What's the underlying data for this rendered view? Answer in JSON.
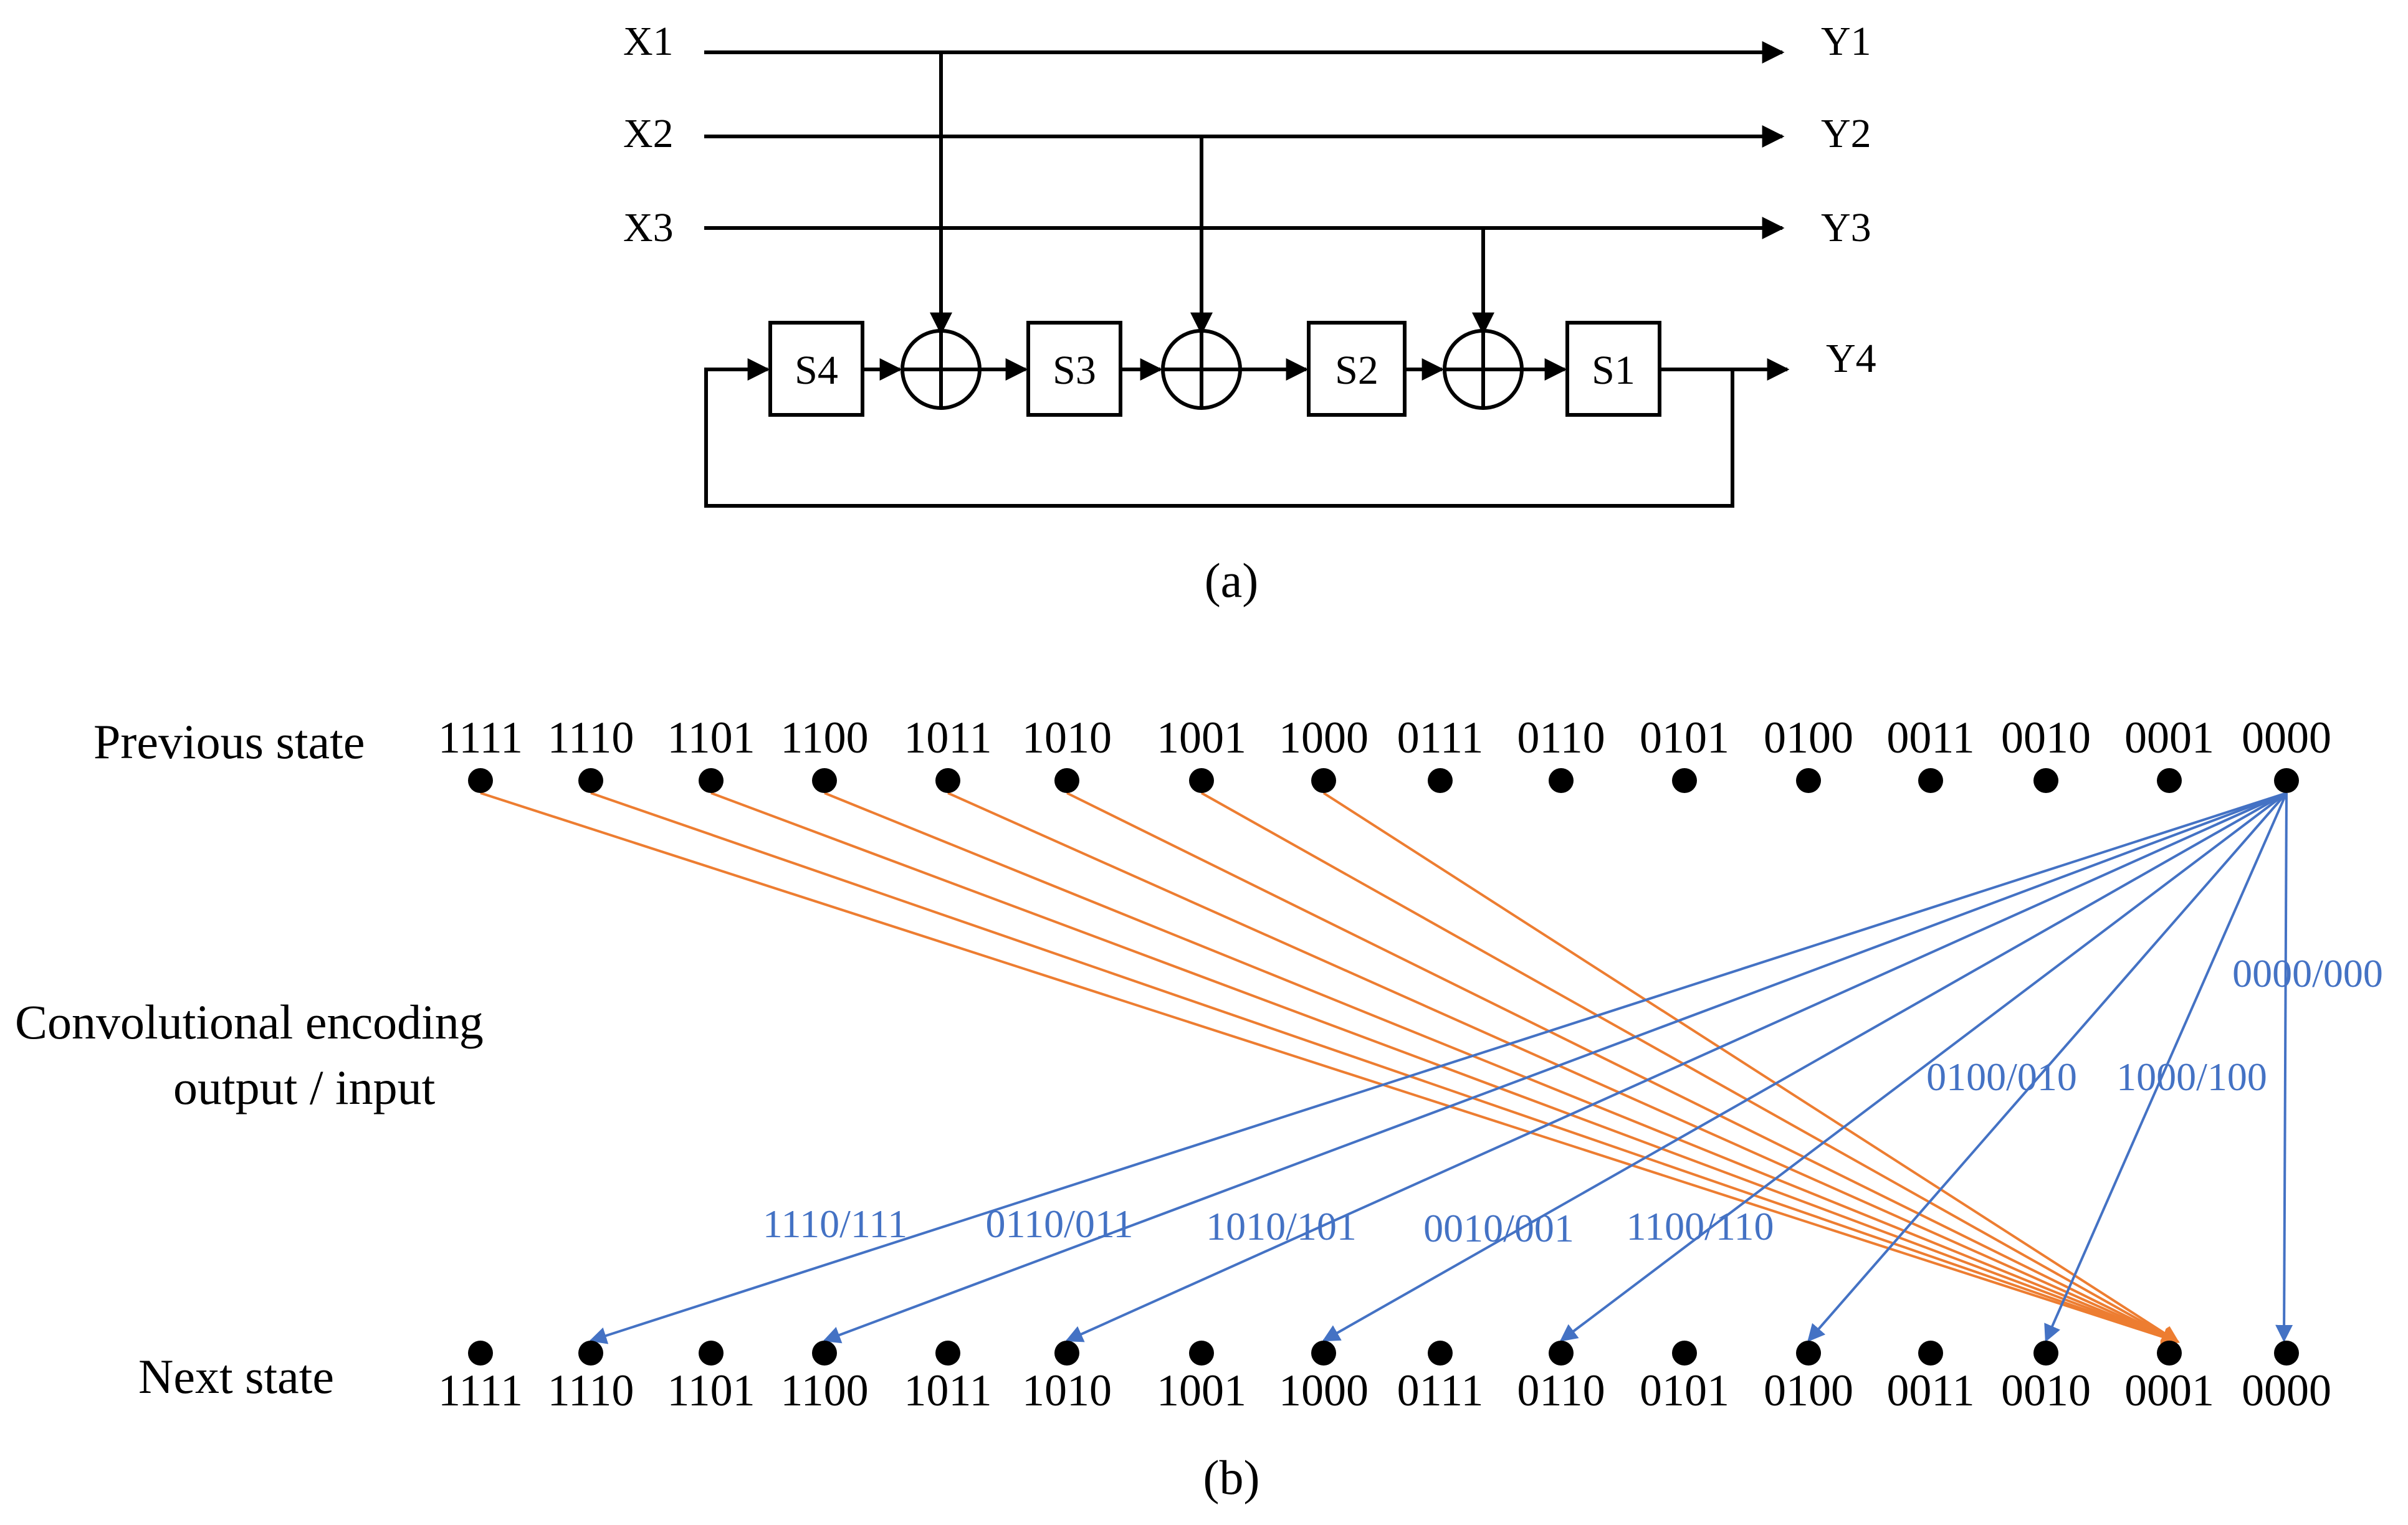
{
  "panel_a": {
    "caption": "(a)",
    "inputs": [
      "X1",
      "X2",
      "X3"
    ],
    "outputs": [
      "Y1",
      "Y2",
      "Y3"
    ],
    "feedback_output": "Y4",
    "registers": [
      "S4",
      "S3",
      "S2",
      "S1"
    ]
  },
  "panel_b": {
    "caption": "(b)",
    "row_labels": {
      "previous": "Previous state",
      "middle_line1": "Convolutional encoding",
      "middle_line2": "output / input",
      "next": "Next state"
    },
    "states": [
      "1111",
      "1110",
      "1101",
      "1100",
      "1011",
      "1010",
      "1001",
      "1000",
      "0111",
      "0110",
      "0101",
      "0100",
      "0011",
      "0010",
      "0001",
      "0000"
    ],
    "orange_transitions": [
      {
        "from": "1111",
        "to": "0001"
      },
      {
        "from": "1110",
        "to": "0001"
      },
      {
        "from": "1101",
        "to": "0001"
      },
      {
        "from": "1100",
        "to": "0001"
      },
      {
        "from": "1011",
        "to": "0001"
      },
      {
        "from": "1010",
        "to": "0001"
      },
      {
        "from": "1001",
        "to": "0001"
      },
      {
        "from": "1000",
        "to": "0001"
      }
    ],
    "blue_transitions": [
      {
        "from": "0000",
        "to": "1110",
        "label": "1110/111"
      },
      {
        "from": "0000",
        "to": "1100",
        "label": "0110/011"
      },
      {
        "from": "0000",
        "to": "1010",
        "label": "1010/101"
      },
      {
        "from": "0000",
        "to": "1000",
        "label": "0010/001"
      },
      {
        "from": "0000",
        "to": "0110",
        "label": "1100/110"
      },
      {
        "from": "0000",
        "to": "0100",
        "label": "0100/010"
      },
      {
        "from": "0000",
        "to": "0010",
        "label": "1000/100"
      },
      {
        "from": "0000",
        "to": "0000",
        "label": "0000/000"
      }
    ],
    "colors": {
      "orange": "#ed7d31",
      "blue": "#4472c4",
      "node": "#000000"
    }
  }
}
